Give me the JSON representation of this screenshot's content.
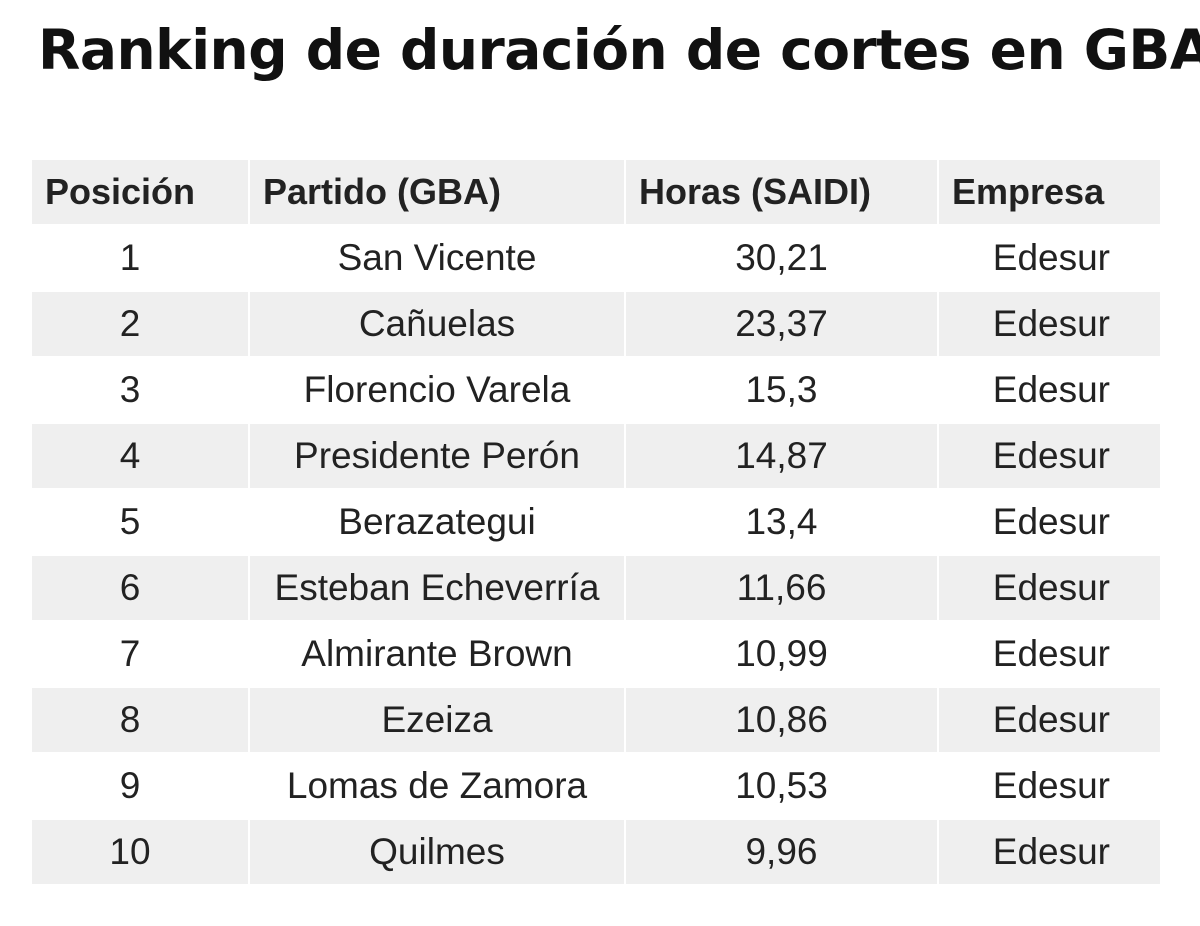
{
  "title": "Ranking de duración de cortes en GBA",
  "chart_data": {
    "type": "table",
    "title": "Ranking de duración de cortes en GBA",
    "columns": [
      "Posición",
      "Partido (GBA)",
      "Horas (SAIDI)",
      "Empresa"
    ],
    "rows": [
      [
        "1",
        "San Vicente",
        "30,21",
        "Edesur"
      ],
      [
        "2",
        "Cañuelas",
        "23,37",
        "Edesur"
      ],
      [
        "3",
        "Florencio Varela",
        "15,3",
        "Edesur"
      ],
      [
        "4",
        "Presidente Perón",
        "14,87",
        "Edesur"
      ],
      [
        "5",
        "Berazategui",
        "13,4",
        "Edesur"
      ],
      [
        "6",
        "Esteban Echeverría",
        "11,66",
        "Edesur"
      ],
      [
        "7",
        "Almirante Brown",
        "10,99",
        "Edesur"
      ],
      [
        "8",
        "Ezeiza",
        "10,86",
        "Edesur"
      ],
      [
        "9",
        "Lomas de Zamora",
        "10,53",
        "Edesur"
      ],
      [
        "10",
        "Quilmes",
        "9,96",
        "Edesur"
      ]
    ]
  }
}
